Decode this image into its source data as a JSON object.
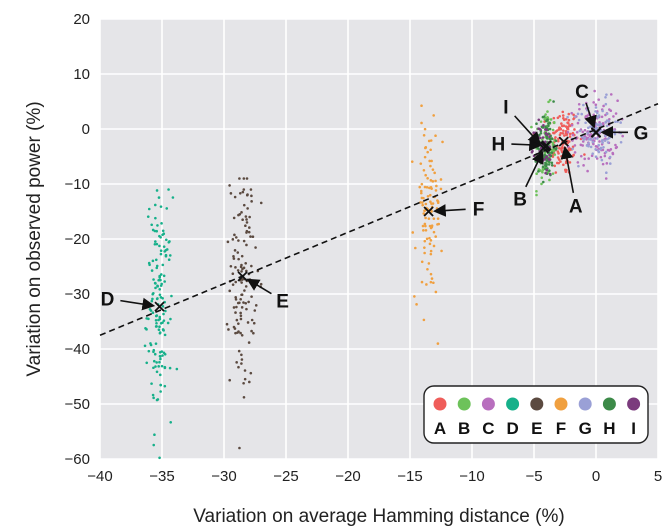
{
  "chart_data": {
    "type": "scatter",
    "title": "",
    "xlabel": "Variation on average Hamming distance (%)",
    "ylabel": "Variation on observed power (%)",
    "xlim": [
      -40,
      5
    ],
    "ylim": [
      -60,
      20
    ],
    "xticks": [
      -40,
      -35,
      -30,
      -25,
      -20,
      -15,
      -10,
      -5,
      0,
      5
    ],
    "yticks": [
      -60,
      -50,
      -40,
      -30,
      -20,
      -10,
      0,
      10,
      20
    ],
    "xtick_labels": [
      "−40",
      "−35",
      "−30",
      "−25",
      "−20",
      "−15",
      "−10",
      "−5",
      "0",
      "5"
    ],
    "ytick_labels": [
      "−60",
      "−50",
      "−40",
      "−30",
      "−20",
      "−10",
      "0",
      "10",
      "20"
    ],
    "grid": true,
    "background": "#e5e5e8",
    "legend_position": "bottom-right",
    "trend_line": {
      "style": "dashed",
      "color": "#111111",
      "x": [
        -40,
        5
      ],
      "y": [
        -37.5,
        4.6
      ]
    },
    "series": [
      {
        "name": "A",
        "color": "#ef5d5a",
        "mean": [
          -2.6,
          -2.3
        ],
        "spread": [
          0.6,
          3.2
        ],
        "n": 130,
        "yrange": [
          -10,
          6
        ]
      },
      {
        "name": "B",
        "color": "#6dc25a",
        "mean": [
          -4.1,
          -3.2
        ],
        "spread": [
          0.45,
          3.5
        ],
        "n": 110,
        "yrange": [
          -12,
          6
        ]
      },
      {
        "name": "C",
        "color": "#b86fbe",
        "mean": [
          0.0,
          -0.7
        ],
        "spread": [
          0.9,
          3.0
        ],
        "n": 150,
        "yrange": [
          -9,
          8
        ]
      },
      {
        "name": "D",
        "color": "#16b08a",
        "mean": [
          -35.2,
          -32.3
        ],
        "spread": [
          0.5,
          10.0
        ],
        "n": 150,
        "yrange": [
          -60,
          -11
        ]
      },
      {
        "name": "E",
        "color": "#5b4a40",
        "mean": [
          -28.5,
          -26.8
        ],
        "spread": [
          0.5,
          10.0
        ],
        "n": 130,
        "yrange": [
          -58,
          -9
        ]
      },
      {
        "name": "F",
        "color": "#f0a040",
        "mean": [
          -13.5,
          -15.0
        ],
        "spread": [
          0.55,
          8.0
        ],
        "n": 110,
        "yrange": [
          -43,
          7
        ]
      },
      {
        "name": "G",
        "color": "#9aa0d6",
        "mean": [
          0.0,
          -0.6
        ],
        "spread": [
          0.9,
          2.8
        ],
        "n": 100,
        "yrange": [
          -8,
          8
        ]
      },
      {
        "name": "H",
        "color": "#3c8a48",
        "mean": [
          -4.0,
          -3.0
        ],
        "spread": [
          0.35,
          3.0
        ],
        "n": 90,
        "yrange": [
          -11,
          5
        ]
      },
      {
        "name": "I",
        "color": "#7b3b7d",
        "mean": [
          -4.2,
          -3.5
        ],
        "spread": [
          0.35,
          2.5
        ],
        "n": 60,
        "yrange": [
          -10,
          4
        ]
      }
    ],
    "annotations": [
      {
        "label": "A",
        "side": "below"
      },
      {
        "label": "B",
        "side": "below-left"
      },
      {
        "label": "C",
        "side": "above-left"
      },
      {
        "label": "D",
        "side": "left"
      },
      {
        "label": "E",
        "side": "below-right"
      },
      {
        "label": "F",
        "side": "right"
      },
      {
        "label": "G",
        "side": "right"
      },
      {
        "label": "H",
        "side": "left"
      },
      {
        "label": "I",
        "side": "above-left"
      }
    ]
  }
}
